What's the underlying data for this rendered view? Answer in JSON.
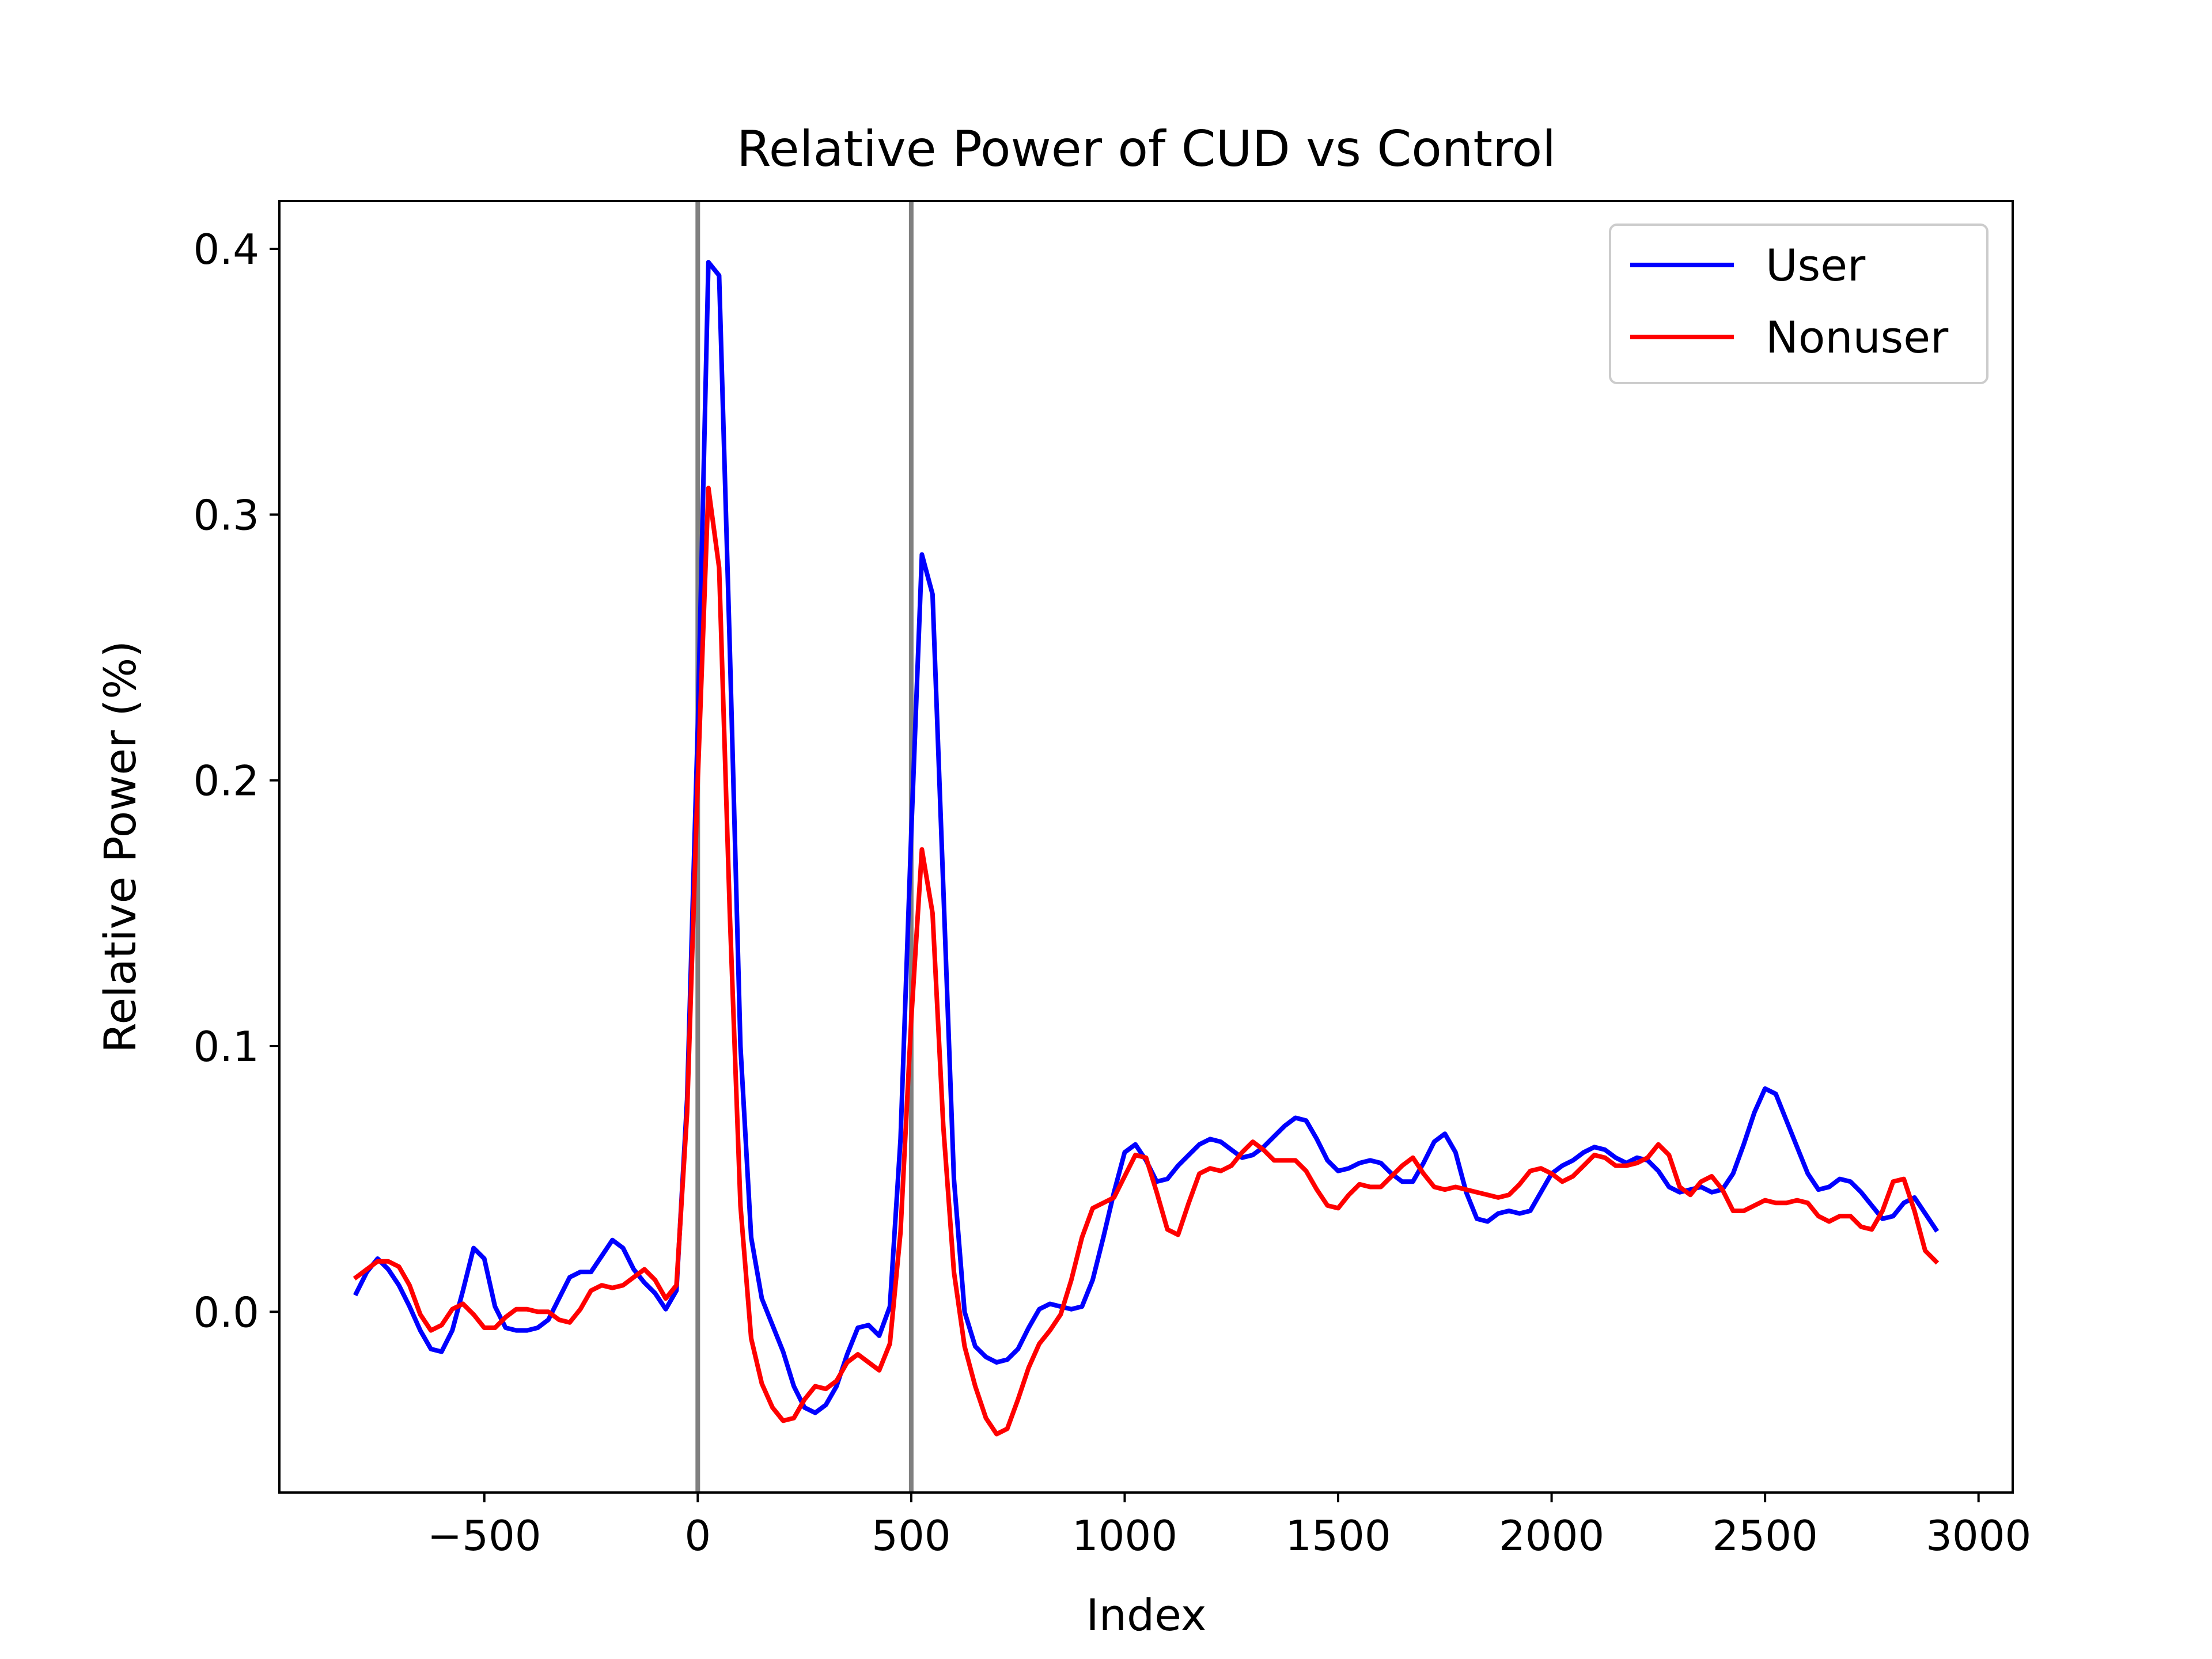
{
  "chart_data": {
    "type": "line",
    "title": "Relative Power of CUD vs Control",
    "xlabel": "Index",
    "ylabel": "Relative Power (%)",
    "xlim": [
      -980,
      3080
    ],
    "ylim": [
      -0.068,
      0.418
    ],
    "xticks": [
      -500,
      0,
      500,
      1000,
      1500,
      2000,
      2500,
      3000
    ],
    "xtick_labels": [
      "−500",
      "0",
      "500",
      "1000",
      "1500",
      "2000",
      "2500",
      "3000"
    ],
    "yticks": [
      0.0,
      0.1,
      0.2,
      0.3,
      0.4
    ],
    "ytick_labels": [
      "0.0",
      "0.1",
      "0.2",
      "0.3",
      "0.4"
    ],
    "grid": false,
    "legend_position": "top-right",
    "vertical_lines": [
      {
        "x": 0,
        "color": "#808080"
      },
      {
        "x": 500,
        "color": "#808080"
      }
    ],
    "series": [
      {
        "name": "User",
        "color": "#0000ff",
        "points": [
          [
            -800,
            0.007
          ],
          [
            -775,
            0.015
          ],
          [
            -750,
            0.02
          ],
          [
            -725,
            0.016
          ],
          [
            -700,
            0.01
          ],
          [
            -675,
            0.002
          ],
          [
            -650,
            -0.007
          ],
          [
            -625,
            -0.014
          ],
          [
            -600,
            -0.015
          ],
          [
            -575,
            -0.007
          ],
          [
            -550,
            0.008
          ],
          [
            -525,
            0.024
          ],
          [
            -500,
            0.02
          ],
          [
            -475,
            0.002
          ],
          [
            -450,
            -0.006
          ],
          [
            -425,
            -0.007
          ],
          [
            -400,
            -0.007
          ],
          [
            -375,
            -0.006
          ],
          [
            -350,
            -0.003
          ],
          [
            -325,
            0.005
          ],
          [
            -300,
            0.013
          ],
          [
            -275,
            0.015
          ],
          [
            -250,
            0.015
          ],
          [
            -225,
            0.021
          ],
          [
            -200,
            0.027
          ],
          [
            -175,
            0.024
          ],
          [
            -150,
            0.016
          ],
          [
            -125,
            0.011
          ],
          [
            -100,
            0.007
          ],
          [
            -75,
            0.001
          ],
          [
            -50,
            0.008
          ],
          [
            -25,
            0.08
          ],
          [
            0,
            0.22
          ],
          [
            25,
            0.395
          ],
          [
            50,
            0.39
          ],
          [
            75,
            0.25
          ],
          [
            100,
            0.1
          ],
          [
            125,
            0.028
          ],
          [
            150,
            0.005
          ],
          [
            175,
            -0.005
          ],
          [
            200,
            -0.015
          ],
          [
            225,
            -0.028
          ],
          [
            250,
            -0.036
          ],
          [
            275,
            -0.038
          ],
          [
            300,
            -0.035
          ],
          [
            325,
            -0.028
          ],
          [
            350,
            -0.016
          ],
          [
            375,
            -0.006
          ],
          [
            400,
            -0.005
          ],
          [
            425,
            -0.009
          ],
          [
            450,
            0.002
          ],
          [
            475,
            0.065
          ],
          [
            500,
            0.18
          ],
          [
            525,
            0.285
          ],
          [
            550,
            0.27
          ],
          [
            575,
            0.16
          ],
          [
            600,
            0.05
          ],
          [
            625,
            0.0
          ],
          [
            650,
            -0.013
          ],
          [
            675,
            -0.017
          ],
          [
            700,
            -0.019
          ],
          [
            725,
            -0.018
          ],
          [
            750,
            -0.014
          ],
          [
            775,
            -0.006
          ],
          [
            800,
            0.001
          ],
          [
            825,
            0.003
          ],
          [
            850,
            0.002
          ],
          [
            875,
            0.001
          ],
          [
            900,
            0.002
          ],
          [
            925,
            0.012
          ],
          [
            950,
            0.028
          ],
          [
            975,
            0.045
          ],
          [
            1000,
            0.06
          ],
          [
            1025,
            0.063
          ],
          [
            1050,
            0.057
          ],
          [
            1075,
            0.049
          ],
          [
            1100,
            0.05
          ],
          [
            1125,
            0.055
          ],
          [
            1150,
            0.059
          ],
          [
            1175,
            0.063
          ],
          [
            1200,
            0.065
          ],
          [
            1225,
            0.064
          ],
          [
            1250,
            0.061
          ],
          [
            1275,
            0.058
          ],
          [
            1300,
            0.059
          ],
          [
            1325,
            0.062
          ],
          [
            1350,
            0.066
          ],
          [
            1375,
            0.07
          ],
          [
            1400,
            0.073
          ],
          [
            1425,
            0.072
          ],
          [
            1450,
            0.065
          ],
          [
            1475,
            0.057
          ],
          [
            1500,
            0.053
          ],
          [
            1525,
            0.054
          ],
          [
            1550,
            0.056
          ],
          [
            1575,
            0.057
          ],
          [
            1600,
            0.056
          ],
          [
            1625,
            0.052
          ],
          [
            1650,
            0.049
          ],
          [
            1675,
            0.049
          ],
          [
            1700,
            0.056
          ],
          [
            1725,
            0.064
          ],
          [
            1750,
            0.067
          ],
          [
            1775,
            0.06
          ],
          [
            1800,
            0.045
          ],
          [
            1825,
            0.035
          ],
          [
            1850,
            0.034
          ],
          [
            1875,
            0.037
          ],
          [
            1900,
            0.038
          ],
          [
            1925,
            0.037
          ],
          [
            1950,
            0.038
          ],
          [
            1975,
            0.045
          ],
          [
            2000,
            0.052
          ],
          [
            2025,
            0.055
          ],
          [
            2050,
            0.057
          ],
          [
            2075,
            0.06
          ],
          [
            2100,
            0.062
          ],
          [
            2125,
            0.061
          ],
          [
            2150,
            0.058
          ],
          [
            2175,
            0.056
          ],
          [
            2200,
            0.058
          ],
          [
            2225,
            0.057
          ],
          [
            2250,
            0.053
          ],
          [
            2275,
            0.047
          ],
          [
            2300,
            0.045
          ],
          [
            2325,
            0.046
          ],
          [
            2350,
            0.047
          ],
          [
            2375,
            0.045
          ],
          [
            2400,
            0.046
          ],
          [
            2425,
            0.052
          ],
          [
            2450,
            0.063
          ],
          [
            2475,
            0.075
          ],
          [
            2500,
            0.084
          ],
          [
            2525,
            0.082
          ],
          [
            2550,
            0.072
          ],
          [
            2575,
            0.062
          ],
          [
            2600,
            0.052
          ],
          [
            2625,
            0.046
          ],
          [
            2650,
            0.047
          ],
          [
            2675,
            0.05
          ],
          [
            2700,
            0.049
          ],
          [
            2725,
            0.045
          ],
          [
            2750,
            0.04
          ],
          [
            2775,
            0.035
          ],
          [
            2800,
            0.036
          ],
          [
            2825,
            0.041
          ],
          [
            2850,
            0.043
          ],
          [
            2875,
            0.037
          ],
          [
            2900,
            0.031
          ]
        ]
      },
      {
        "name": "Nonuser",
        "color": "#ff0000",
        "points": [
          [
            -800,
            0.013
          ],
          [
            -775,
            0.016
          ],
          [
            -750,
            0.019
          ],
          [
            -725,
            0.019
          ],
          [
            -700,
            0.017
          ],
          [
            -675,
            0.01
          ],
          [
            -650,
            -0.001
          ],
          [
            -625,
            -0.007
          ],
          [
            -600,
            -0.005
          ],
          [
            -575,
            0.001
          ],
          [
            -550,
            0.003
          ],
          [
            -525,
            -0.001
          ],
          [
            -500,
            -0.006
          ],
          [
            -475,
            -0.006
          ],
          [
            -450,
            -0.002
          ],
          [
            -425,
            0.001
          ],
          [
            -400,
            0.001
          ],
          [
            -375,
            0.0
          ],
          [
            -350,
            0.0
          ],
          [
            -325,
            -0.003
          ],
          [
            -300,
            -0.004
          ],
          [
            -275,
            0.001
          ],
          [
            -250,
            0.008
          ],
          [
            -225,
            0.01
          ],
          [
            -200,
            0.009
          ],
          [
            -175,
            0.01
          ],
          [
            -150,
            0.013
          ],
          [
            -125,
            0.016
          ],
          [
            -100,
            0.012
          ],
          [
            -75,
            0.005
          ],
          [
            -50,
            0.01
          ],
          [
            -25,
            0.075
          ],
          [
            0,
            0.2
          ],
          [
            25,
            0.31
          ],
          [
            50,
            0.28
          ],
          [
            75,
            0.15
          ],
          [
            100,
            0.04
          ],
          [
            125,
            -0.01
          ],
          [
            150,
            -0.027
          ],
          [
            175,
            -0.036
          ],
          [
            200,
            -0.041
          ],
          [
            225,
            -0.04
          ],
          [
            250,
            -0.033
          ],
          [
            275,
            -0.028
          ],
          [
            300,
            -0.029
          ],
          [
            325,
            -0.026
          ],
          [
            350,
            -0.019
          ],
          [
            375,
            -0.016
          ],
          [
            400,
            -0.019
          ],
          [
            425,
            -0.022
          ],
          [
            450,
            -0.012
          ],
          [
            475,
            0.03
          ],
          [
            500,
            0.11
          ],
          [
            525,
            0.174
          ],
          [
            550,
            0.15
          ],
          [
            575,
            0.07
          ],
          [
            600,
            0.015
          ],
          [
            625,
            -0.013
          ],
          [
            650,
            -0.028
          ],
          [
            675,
            -0.04
          ],
          [
            700,
            -0.046
          ],
          [
            725,
            -0.044
          ],
          [
            750,
            -0.033
          ],
          [
            775,
            -0.021
          ],
          [
            800,
            -0.012
          ],
          [
            825,
            -0.007
          ],
          [
            850,
            -0.001
          ],
          [
            875,
            0.012
          ],
          [
            900,
            0.028
          ],
          [
            925,
            0.039
          ],
          [
            950,
            0.041
          ],
          [
            975,
            0.043
          ],
          [
            1000,
            0.051
          ],
          [
            1025,
            0.059
          ],
          [
            1050,
            0.058
          ],
          [
            1075,
            0.045
          ],
          [
            1100,
            0.031
          ],
          [
            1125,
            0.029
          ],
          [
            1150,
            0.041
          ],
          [
            1175,
            0.052
          ],
          [
            1200,
            0.054
          ],
          [
            1225,
            0.053
          ],
          [
            1250,
            0.055
          ],
          [
            1275,
            0.06
          ],
          [
            1300,
            0.064
          ],
          [
            1325,
            0.061
          ],
          [
            1350,
            0.057
          ],
          [
            1375,
            0.057
          ],
          [
            1400,
            0.057
          ],
          [
            1425,
            0.053
          ],
          [
            1450,
            0.046
          ],
          [
            1475,
            0.04
          ],
          [
            1500,
            0.039
          ],
          [
            1525,
            0.044
          ],
          [
            1550,
            0.048
          ],
          [
            1575,
            0.047
          ],
          [
            1600,
            0.047
          ],
          [
            1625,
            0.051
          ],
          [
            1650,
            0.055
          ],
          [
            1675,
            0.058
          ],
          [
            1700,
            0.052
          ],
          [
            1725,
            0.047
          ],
          [
            1750,
            0.046
          ],
          [
            1775,
            0.047
          ],
          [
            1800,
            0.046
          ],
          [
            1825,
            0.045
          ],
          [
            1850,
            0.044
          ],
          [
            1875,
            0.043
          ],
          [
            1900,
            0.044
          ],
          [
            1925,
            0.048
          ],
          [
            1950,
            0.053
          ],
          [
            1975,
            0.054
          ],
          [
            2000,
            0.052
          ],
          [
            2025,
            0.049
          ],
          [
            2050,
            0.051
          ],
          [
            2075,
            0.055
          ],
          [
            2100,
            0.059
          ],
          [
            2125,
            0.058
          ],
          [
            2150,
            0.055
          ],
          [
            2175,
            0.055
          ],
          [
            2200,
            0.056
          ],
          [
            2225,
            0.058
          ],
          [
            2250,
            0.063
          ],
          [
            2275,
            0.059
          ],
          [
            2300,
            0.047
          ],
          [
            2325,
            0.044
          ],
          [
            2350,
            0.049
          ],
          [
            2375,
            0.051
          ],
          [
            2400,
            0.046
          ],
          [
            2425,
            0.038
          ],
          [
            2450,
            0.038
          ],
          [
            2475,
            0.04
          ],
          [
            2500,
            0.042
          ],
          [
            2525,
            0.041
          ],
          [
            2550,
            0.041
          ],
          [
            2575,
            0.042
          ],
          [
            2600,
            0.041
          ],
          [
            2625,
            0.036
          ],
          [
            2650,
            0.034
          ],
          [
            2675,
            0.036
          ],
          [
            2700,
            0.036
          ],
          [
            2725,
            0.032
          ],
          [
            2750,
            0.031
          ],
          [
            2775,
            0.038
          ],
          [
            2800,
            0.049
          ],
          [
            2825,
            0.05
          ],
          [
            2850,
            0.038
          ],
          [
            2875,
            0.023
          ],
          [
            2900,
            0.019
          ]
        ]
      }
    ]
  }
}
